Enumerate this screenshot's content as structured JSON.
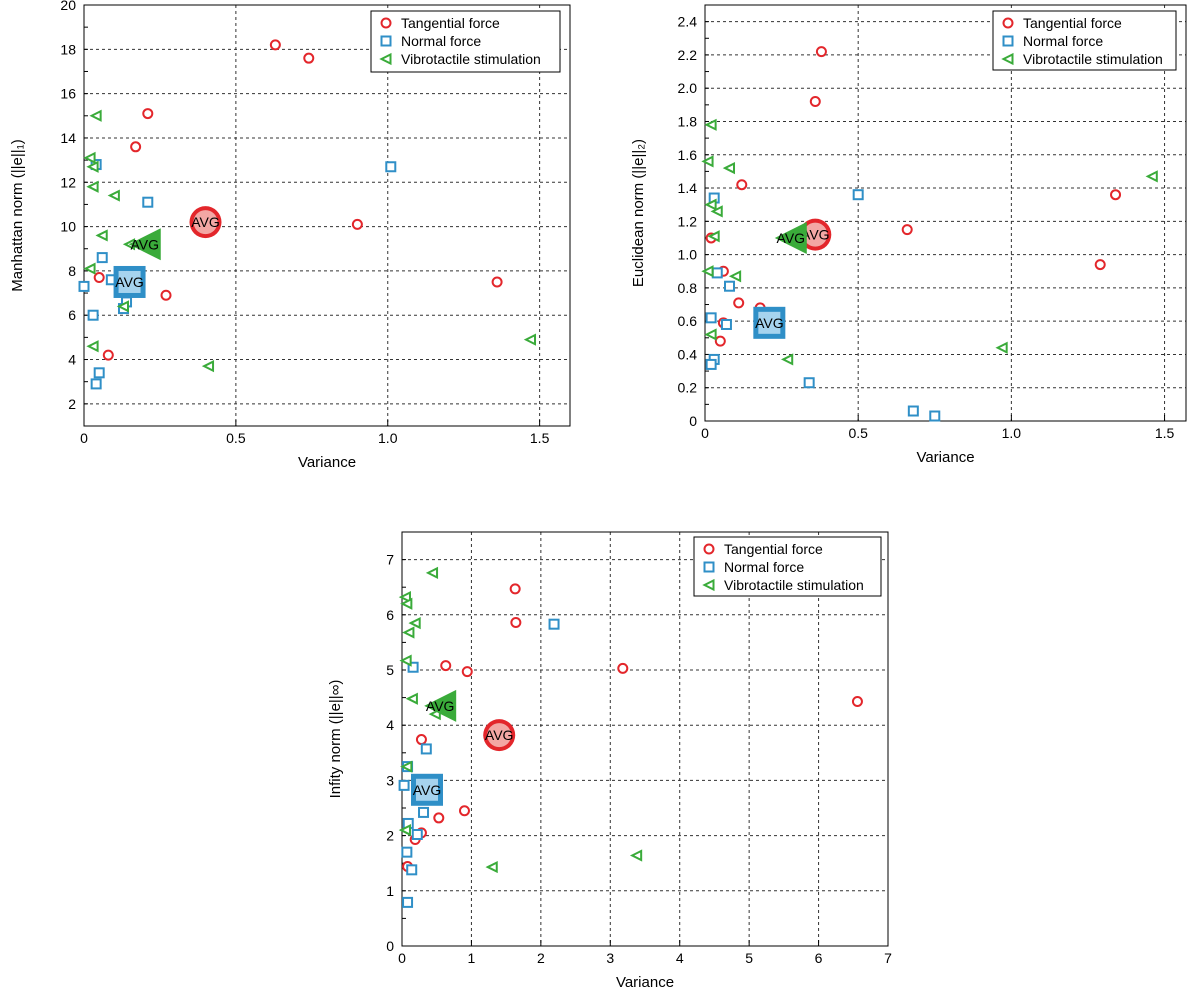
{
  "legend_items": [
    "Tangential force",
    "Normal force",
    "Vibrotactile stimulation"
  ],
  "avg_label": "AVG",
  "colors": {
    "tangential": "#e3262b",
    "normal": "#2f8fc7",
    "vibro": "#3aab3a"
  },
  "chart_data": [
    {
      "type": "scatter",
      "id": "manhattan",
      "xlabel": "Variance",
      "ylabel": "Manhattan norm (||e||₁)",
      "xlim": [
        0,
        1.6
      ],
      "ylim": [
        1,
        20
      ],
      "xticks": [
        0,
        0.5,
        1.0,
        1.5
      ],
      "xticklabels": [
        "0",
        "0.5",
        "1.0",
        "1.5"
      ],
      "yticks": [
        2,
        4,
        6,
        8,
        10,
        12,
        14,
        16,
        18,
        20
      ],
      "yticklabels": [
        "2",
        "4",
        "6",
        "8",
        "10",
        "12",
        "14",
        "16",
        "18",
        "20"
      ],
      "minor_y": 1,
      "legend": "top-right",
      "series": [
        {
          "name": "Tangential force",
          "marker": "circle",
          "points": [
            [
              0.63,
              18.2
            ],
            [
              0.74,
              17.6
            ],
            [
              0.21,
              15.1
            ],
            [
              0.17,
              13.6
            ],
            [
              0.9,
              10.1
            ],
            [
              0.05,
              7.7
            ],
            [
              0.27,
              6.9
            ],
            [
              1.36,
              7.5
            ],
            [
              0.08,
              4.2
            ]
          ],
          "avg": [
            0.4,
            10.2
          ]
        },
        {
          "name": "Normal force",
          "marker": "square",
          "points": [
            [
              0.04,
              12.8
            ],
            [
              1.01,
              12.7
            ],
            [
              0.21,
              11.1
            ],
            [
              0.06,
              8.6
            ],
            [
              0.09,
              7.6
            ],
            [
              0.0,
              7.3
            ],
            [
              0.14,
              6.6
            ],
            [
              0.13,
              6.3
            ],
            [
              0.03,
              6.0
            ],
            [
              0.05,
              3.4
            ],
            [
              0.04,
              2.9
            ]
          ],
          "avg": [
            0.15,
            7.5
          ]
        },
        {
          "name": "Vibrotactile stimulation",
          "marker": "triangle",
          "points": [
            [
              0.04,
              15.0
            ],
            [
              0.02,
              13.1
            ],
            [
              0.03,
              12.7
            ],
            [
              0.03,
              11.8
            ],
            [
              0.1,
              11.4
            ],
            [
              0.06,
              9.6
            ],
            [
              0.15,
              9.2
            ],
            [
              0.02,
              8.1
            ],
            [
              0.13,
              6.4
            ],
            [
              0.03,
              4.6
            ],
            [
              0.41,
              3.7
            ],
            [
              1.47,
              4.9
            ]
          ],
          "avg": [
            0.2,
            9.2
          ]
        }
      ]
    },
    {
      "type": "scatter",
      "id": "euclidean",
      "xlabel": "Variance",
      "ylabel": "Euclidean norm (||e||₂)",
      "xlim": [
        0,
        1.57
      ],
      "ylim": [
        0,
        2.5
      ],
      "xticks": [
        0,
        0.5,
        1.0,
        1.5
      ],
      "xticklabels": [
        "0",
        "0.5",
        "1.0",
        "1.5"
      ],
      "yticks": [
        0,
        0.2,
        0.4,
        0.6,
        0.8,
        1.0,
        1.2,
        1.4,
        1.6,
        1.8,
        2.0,
        2.2,
        2.4
      ],
      "yticklabels": [
        "0",
        "0.2",
        "0.4",
        "0.6",
        "0.8",
        "1.0",
        "1.2",
        "1.4",
        "1.6",
        "1.8",
        "2.0",
        "2.2",
        "2.4"
      ],
      "minor_y": 0.1,
      "legend": "top-right",
      "series": [
        {
          "name": "Tangential force",
          "marker": "circle",
          "points": [
            [
              0.38,
              2.22
            ],
            [
              0.36,
              1.92
            ],
            [
              0.12,
              1.42
            ],
            [
              1.34,
              1.36
            ],
            [
              0.66,
              1.15
            ],
            [
              0.02,
              1.1
            ],
            [
              1.29,
              0.94
            ],
            [
              0.06,
              0.9
            ],
            [
              0.11,
              0.71
            ],
            [
              0.18,
              0.68
            ],
            [
              0.06,
              0.59
            ],
            [
              0.05,
              0.48
            ]
          ],
          "avg": [
            0.36,
            1.12
          ]
        },
        {
          "name": "Normal force",
          "marker": "square",
          "points": [
            [
              0.03,
              1.34
            ],
            [
              0.5,
              1.36
            ],
            [
              0.04,
              0.89
            ],
            [
              0.08,
              0.81
            ],
            [
              0.02,
              0.62
            ],
            [
              0.07,
              0.58
            ],
            [
              0.03,
              0.37
            ],
            [
              0.02,
              0.34
            ],
            [
              0.34,
              0.23
            ],
            [
              0.68,
              0.06
            ],
            [
              0.75,
              0.03
            ]
          ],
          "avg": [
            0.21,
            0.59
          ]
        },
        {
          "name": "Vibrotactile stimulation",
          "marker": "triangle",
          "points": [
            [
              0.02,
              1.78
            ],
            [
              0.01,
              1.56
            ],
            [
              0.08,
              1.52
            ],
            [
              1.46,
              1.47
            ],
            [
              0.02,
              1.3
            ],
            [
              0.04,
              1.26
            ],
            [
              0.03,
              1.11
            ],
            [
              0.01,
              0.9
            ],
            [
              0.1,
              0.87
            ],
            [
              0.02,
              0.52
            ],
            [
              0.27,
              0.37
            ],
            [
              0.97,
              0.44
            ]
          ],
          "avg": [
            0.28,
            1.1
          ]
        }
      ]
    },
    {
      "type": "scatter",
      "id": "infinity",
      "xlabel": "Variance",
      "ylabel": "Infity norm (||e||∞)",
      "xlim": [
        0,
        7
      ],
      "ylim": [
        0,
        7.5
      ],
      "xticks": [
        0,
        1,
        2,
        3,
        4,
        5,
        6,
        7
      ],
      "xticklabels": [
        "0",
        "1",
        "2",
        "3",
        "4",
        "5",
        "6",
        "7"
      ],
      "yticks": [
        0,
        1,
        2,
        3,
        4,
        5,
        6,
        7
      ],
      "yticklabels": [
        "0",
        "1",
        "2",
        "3",
        "4",
        "5",
        "6",
        "7"
      ],
      "minor_y": 0.5,
      "legend": "top-right",
      "series": [
        {
          "name": "Tangential force",
          "marker": "circle",
          "points": [
            [
              1.63,
              6.47
            ],
            [
              1.64,
              5.86
            ],
            [
              0.63,
              5.08
            ],
            [
              0.94,
              4.97
            ],
            [
              3.18,
              5.03
            ],
            [
              6.56,
              4.43
            ],
            [
              0.28,
              3.74
            ],
            [
              0.9,
              2.45
            ],
            [
              0.53,
              2.32
            ],
            [
              0.28,
              2.05
            ],
            [
              0.19,
              1.93
            ],
            [
              0.08,
              1.44
            ]
          ],
          "avg": [
            1.4,
            3.82
          ]
        },
        {
          "name": "Normal force",
          "marker": "square",
          "points": [
            [
              2.19,
              5.83
            ],
            [
              0.16,
              5.05
            ],
            [
              0.35,
              3.57
            ],
            [
              0.08,
              3.25
            ],
            [
              0.03,
              2.91
            ],
            [
              0.31,
              2.42
            ],
            [
              0.09,
              2.22
            ],
            [
              0.22,
              2.02
            ],
            [
              0.07,
              1.7
            ],
            [
              0.14,
              1.38
            ],
            [
              0.08,
              0.79
            ]
          ],
          "avg": [
            0.36,
            2.83
          ]
        },
        {
          "name": "Vibrotactile stimulation",
          "marker": "triangle",
          "points": [
            [
              0.44,
              6.76
            ],
            [
              0.05,
              6.32
            ],
            [
              0.07,
              6.2
            ],
            [
              0.19,
              5.85
            ],
            [
              0.1,
              5.68
            ],
            [
              0.06,
              5.17
            ],
            [
              0.15,
              4.48
            ],
            [
              0.48,
              4.2
            ],
            [
              0.07,
              3.25
            ],
            [
              0.05,
              2.1
            ],
            [
              1.3,
              1.43
            ],
            [
              3.38,
              1.64
            ]
          ],
          "avg": [
            0.55,
            4.35
          ]
        }
      ]
    }
  ]
}
